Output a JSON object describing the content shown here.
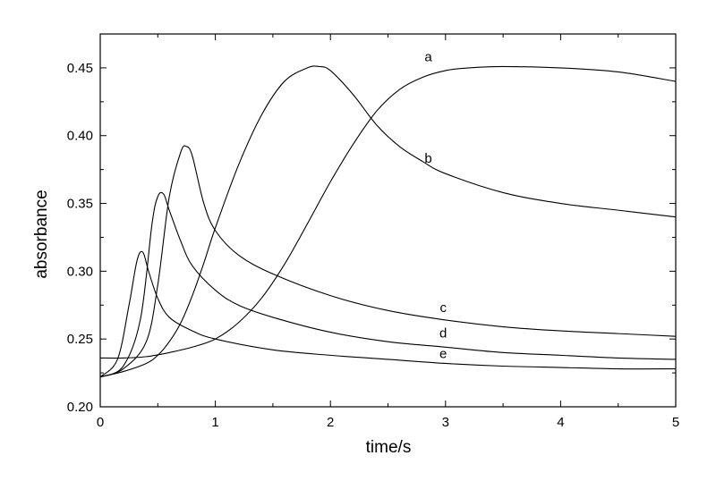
{
  "chart_data": {
    "type": "line",
    "xlabel": "time/s",
    "ylabel": "absorbance",
    "xlim": [
      0,
      5
    ],
    "ylim": [
      0.2,
      0.475
    ],
    "x_ticks": [
      "0",
      "1",
      "2",
      "3",
      "4",
      "5"
    ],
    "y_ticks": [
      "0.20",
      "0.25",
      "0.30",
      "0.35",
      "0.40",
      "0.45"
    ],
    "grid": false,
    "legend": "none",
    "series": [
      {
        "name": "a",
        "x": [
          0,
          0.2,
          0.4,
          0.6,
          0.8,
          1.0,
          1.2,
          1.4,
          1.6,
          1.8,
          2.0,
          2.2,
          2.4,
          2.6,
          2.8,
          3.0,
          3.2,
          3.5,
          4.0,
          4.5,
          5.0
        ],
        "y": [
          0.236,
          0.236,
          0.237,
          0.24,
          0.244,
          0.25,
          0.262,
          0.28,
          0.305,
          0.335,
          0.366,
          0.394,
          0.418,
          0.434,
          0.443,
          0.448,
          0.45,
          0.451,
          0.45,
          0.447,
          0.44
        ]
      },
      {
        "name": "b",
        "x": [
          0,
          0.2,
          0.4,
          0.5,
          0.6,
          0.7,
          0.8,
          0.9,
          1.0,
          1.2,
          1.4,
          1.6,
          1.8,
          1.9,
          2.0,
          2.2,
          2.4,
          2.6,
          2.8,
          3.0,
          3.5,
          4.0,
          4.5,
          5.0
        ],
        "y": [
          0.222,
          0.226,
          0.232,
          0.238,
          0.248,
          0.262,
          0.282,
          0.306,
          0.332,
          0.378,
          0.415,
          0.44,
          0.45,
          0.451,
          0.448,
          0.43,
          0.408,
          0.392,
          0.381,
          0.372,
          0.358,
          0.35,
          0.345,
          0.34
        ]
      },
      {
        "name": "c",
        "x": [
          0,
          0.2,
          0.4,
          0.5,
          0.6,
          0.7,
          0.75,
          0.8,
          0.9,
          1.0,
          1.2,
          1.5,
          2.0,
          2.5,
          3.0,
          3.5,
          4.0,
          4.5,
          5.0
        ],
        "y": [
          0.222,
          0.228,
          0.248,
          0.29,
          0.355,
          0.388,
          0.392,
          0.385,
          0.35,
          0.33,
          0.312,
          0.298,
          0.282,
          0.271,
          0.264,
          0.259,
          0.256,
          0.254,
          0.252
        ]
      },
      {
        "name": "d",
        "x": [
          0,
          0.2,
          0.35,
          0.45,
          0.5,
          0.55,
          0.6,
          0.7,
          0.8,
          1.0,
          1.2,
          1.5,
          2.0,
          2.5,
          3.0,
          3.5,
          4.0,
          4.5,
          5.0
        ],
        "y": [
          0.222,
          0.23,
          0.265,
          0.335,
          0.355,
          0.357,
          0.345,
          0.322,
          0.304,
          0.286,
          0.275,
          0.266,
          0.255,
          0.248,
          0.244,
          0.24,
          0.238,
          0.236,
          0.235
        ]
      },
      {
        "name": "e",
        "x": [
          0,
          0.15,
          0.25,
          0.32,
          0.37,
          0.42,
          0.5,
          0.6,
          0.8,
          1.0,
          1.5,
          2.0,
          2.5,
          3.0,
          3.5,
          4.0,
          4.5,
          5.0
        ],
        "y": [
          0.222,
          0.235,
          0.275,
          0.308,
          0.314,
          0.3,
          0.28,
          0.266,
          0.256,
          0.25,
          0.242,
          0.238,
          0.235,
          0.232,
          0.23,
          0.229,
          0.228,
          0.228
        ]
      }
    ],
    "annotations": [
      {
        "text": "a",
        "x": 2.85,
        "y": 0.455
      },
      {
        "text": "b",
        "x": 2.85,
        "y": 0.38
      },
      {
        "text": "c",
        "x": 2.98,
        "y": 0.27
      },
      {
        "text": "d",
        "x": 2.98,
        "y": 0.251
      },
      {
        "text": "e",
        "x": 2.98,
        "y": 0.236
      }
    ]
  }
}
